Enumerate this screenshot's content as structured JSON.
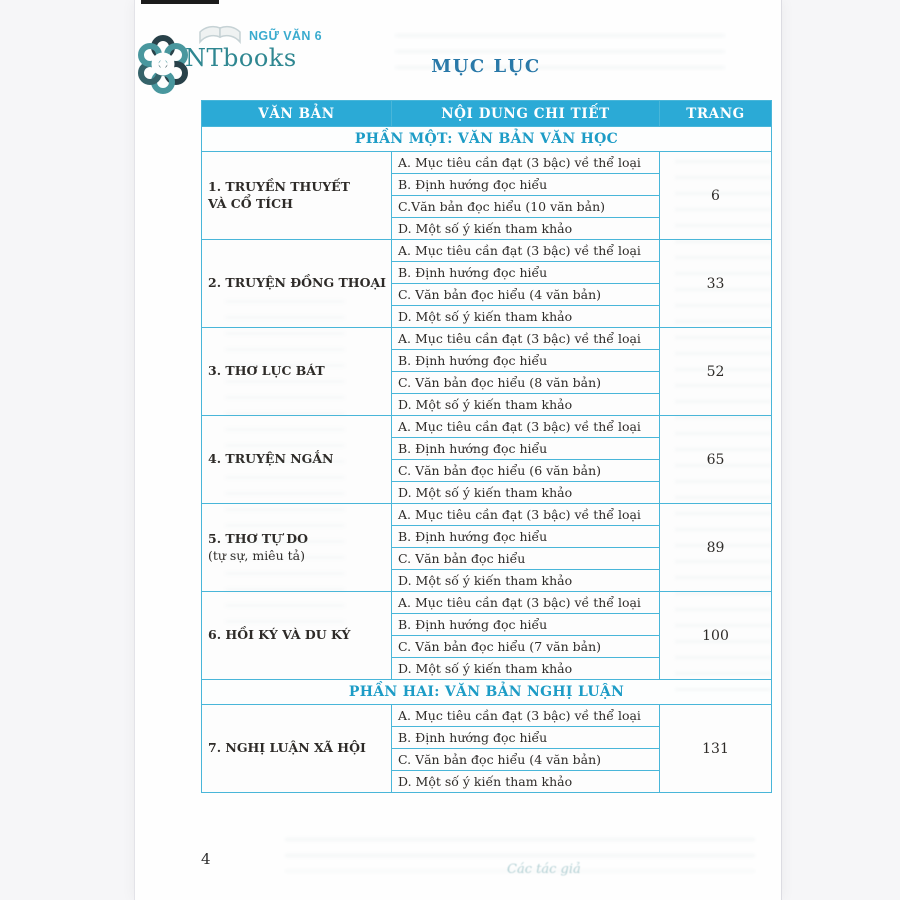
{
  "page": {
    "brand": {
      "publisher": "NTbooks",
      "series": "NGỮ VĂN 6"
    },
    "title": "MỤC LỤC",
    "page_number": "4",
    "ghost_signature": "Các tác giả"
  },
  "colors": {
    "header_background": "#2baad6",
    "table_border": "#49b6d9",
    "part_heading_text": "#1d9cc6",
    "title_text": "#2878a8",
    "brand_teal": "#1e7d88",
    "series_teal": "#2aa4cb",
    "body_text": "#2e2b28"
  },
  "table": {
    "headers": [
      "VĂN BẢN",
      "NỘI DUNG CHI TIẾT",
      "TRANG"
    ],
    "rows": [
      {
        "type": "part",
        "label": "PHẦN MỘT: VĂN BẢN VĂN HỌC"
      },
      {
        "type": "section",
        "title_lines": [
          "1. TRUYỀN THUYẾT",
          "VÀ CỔ TÍCH"
        ],
        "items": [
          "A. Mục tiêu cần đạt (3 bậc) về thể loại",
          "B. Định hướng đọc hiểu",
          "C.Văn bản đọc hiểu (10 văn bản)",
          "D. Một số ý kiến tham khảo"
        ],
        "page": "6"
      },
      {
        "type": "section",
        "title_lines": [
          "2. TRUYỆN ĐỒNG THOẠI"
        ],
        "items": [
          "A. Mục tiêu cần đạt (3 bậc) về thể loại",
          "B. Định hướng đọc hiểu",
          "C. Văn bản đọc hiểu (4 văn bản)",
          "D. Một số ý kiến tham khảo"
        ],
        "page": "33"
      },
      {
        "type": "section",
        "title_lines": [
          "3. THƠ LỤC BÁT"
        ],
        "items": [
          "A. Mục tiêu cần đạt (3 bậc) về thể loại",
          "B. Định hướng đọc hiểu",
          "C. Văn bản đọc hiểu (8 văn bản)",
          "D. Một số ý kiến tham khảo"
        ],
        "page": "52"
      },
      {
        "type": "section",
        "title_lines": [
          "4. TRUYỆN NGẮN"
        ],
        "items": [
          "A. Mục tiêu cần đạt (3 bậc) về thể loại",
          "B. Định hướng đọc hiểu",
          "C. Văn bản đọc hiểu (6 văn bản)",
          "D. Một số ý kiến tham khảo"
        ],
        "page": "65"
      },
      {
        "type": "section",
        "title_lines": [
          "5. THƠ TỰ DO",
          "(tự sự, miêu tả)"
        ],
        "items": [
          "A. Mục tiêu cần đạt (3 bậc) về thể loại",
          "B. Định hướng đọc hiểu",
          "C. Văn bản đọc hiểu",
          "D. Một số ý kiến tham khảo"
        ],
        "page": "89"
      },
      {
        "type": "section",
        "title_lines": [
          "6. HỒI KÝ VÀ DU KÝ"
        ],
        "items": [
          "A. Mục tiêu cần đạt (3 bậc) về thể loại",
          "B. Định hướng đọc hiểu",
          "C. Văn bản đọc hiểu (7 văn bản)",
          "D. Một số ý kiến tham khảo"
        ],
        "page": "100"
      },
      {
        "type": "part",
        "label": "PHẦN HAI: VĂN BẢN NGHỊ LUẬN"
      },
      {
        "type": "section",
        "title_lines": [
          "7. NGHỊ LUẬN XÃ HỘI"
        ],
        "items": [
          "A. Mục tiêu cần đạt (3 bậc) về thể loại",
          "B. Định hướng đọc hiểu",
          "C. Văn bản đọc hiểu (4 văn bản)",
          "D. Một số ý kiến tham khảo"
        ],
        "page": "131"
      }
    ]
  }
}
